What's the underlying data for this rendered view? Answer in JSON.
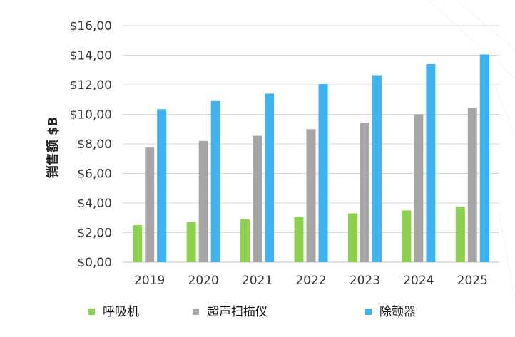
{
  "chart_data": {
    "type": "bar",
    "title": "",
    "xlabel": "",
    "ylabel": "销售额 $B",
    "categories": [
      "2019",
      "2020",
      "2021",
      "2022",
      "2023",
      "2024",
      "2025"
    ],
    "series": [
      {
        "name": "呼吸机",
        "color": "#8dd14f",
        "values": [
          2.5,
          2.7,
          2.9,
          3.05,
          3.3,
          3.5,
          3.75
        ]
      },
      {
        "name": "超声扫描仪",
        "color": "#a6a6a6",
        "values": [
          7.75,
          8.2,
          8.55,
          9.0,
          9.45,
          10.0,
          10.45
        ]
      },
      {
        "name": "除颤器",
        "color": "#3eb1ef",
        "values": [
          10.35,
          10.9,
          11.4,
          12.05,
          12.65,
          13.4,
          14.05
        ]
      }
    ],
    "ylim": [
      0,
      16
    ],
    "yticks": [
      "$0,00",
      "$2,00",
      "$4,00",
      "$6,00",
      "$8,00",
      "$10,00",
      "$12,00",
      "$14,00",
      "$16,00"
    ],
    "grid": true,
    "legend_position": "bottom"
  }
}
